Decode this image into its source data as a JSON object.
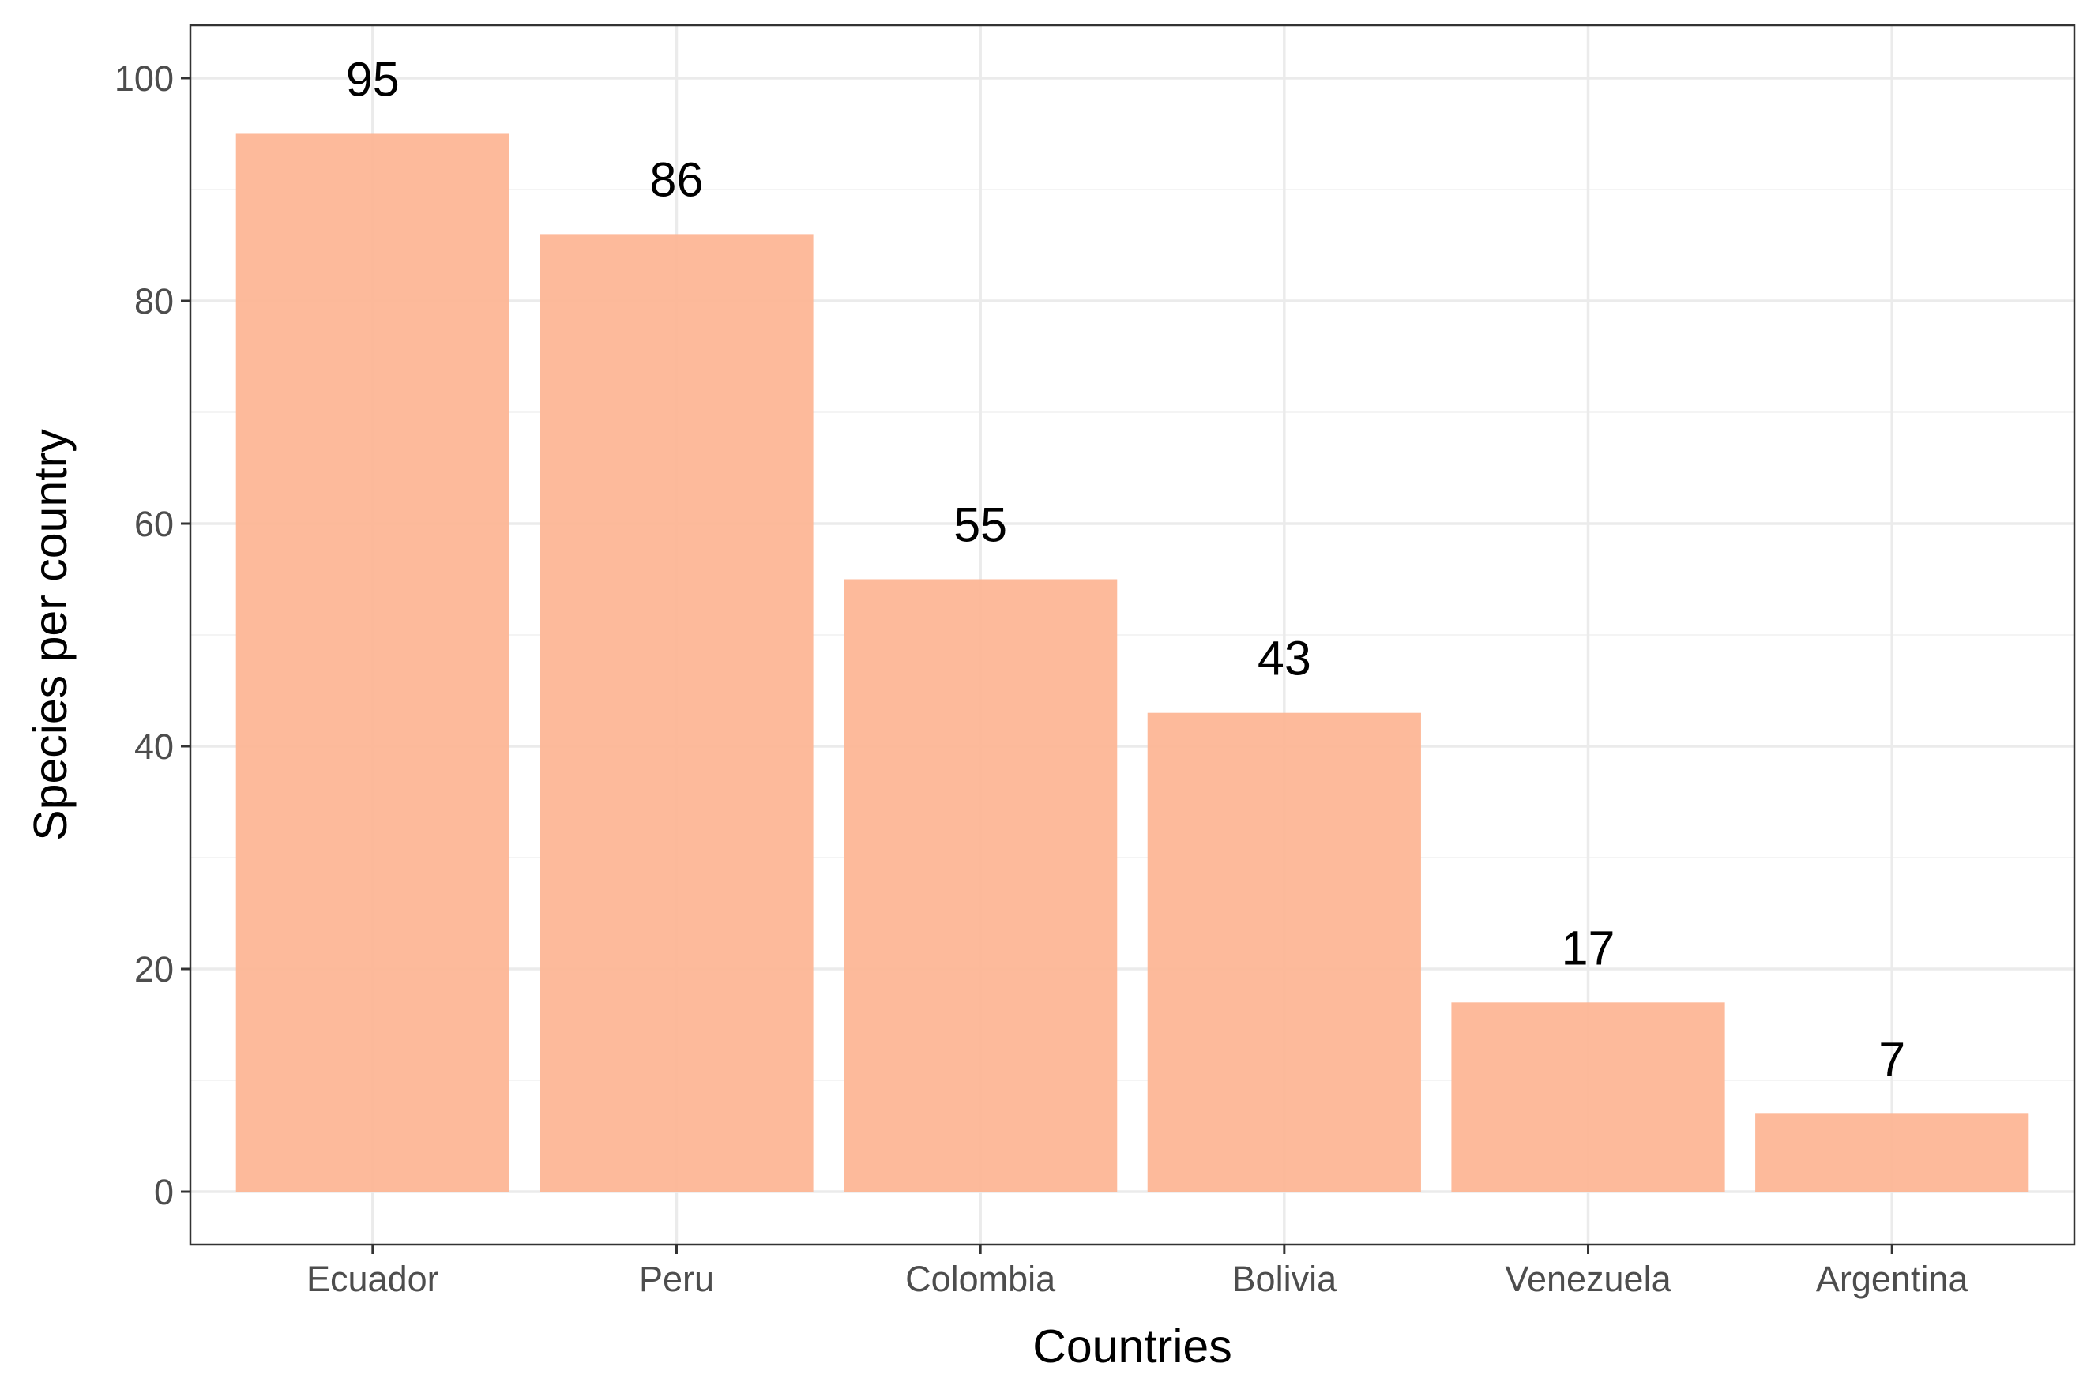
{
  "chart_data": {
    "type": "bar",
    "title": "",
    "xlabel": "Countries",
    "ylabel": "Species per country",
    "categories": [
      "Ecuador",
      "Peru",
      "Colombia",
      "Bolivia",
      "Venezuela",
      "Argentina"
    ],
    "values": [
      95,
      86,
      55,
      43,
      17,
      7
    ],
    "data_labels": [
      "95",
      "86",
      "55",
      "43",
      "17",
      "7"
    ],
    "y_ticks": [
      0,
      20,
      40,
      60,
      80,
      100
    ],
    "y_tick_labels": [
      "0",
      "20",
      "40",
      "60",
      "80",
      "100"
    ],
    "ylim": [
      -4.75,
      104.75
    ],
    "grid": true,
    "minor_grid": true,
    "legend": "none",
    "colors": {
      "bar_fill": "#fdb492",
      "panel_border": "#333333",
      "grid_major": "#ebebeb",
      "grid_minor": "#f4f4f4",
      "tick_label": "#4d4d4d",
      "text": "#000000",
      "background": "#ffffff"
    }
  }
}
